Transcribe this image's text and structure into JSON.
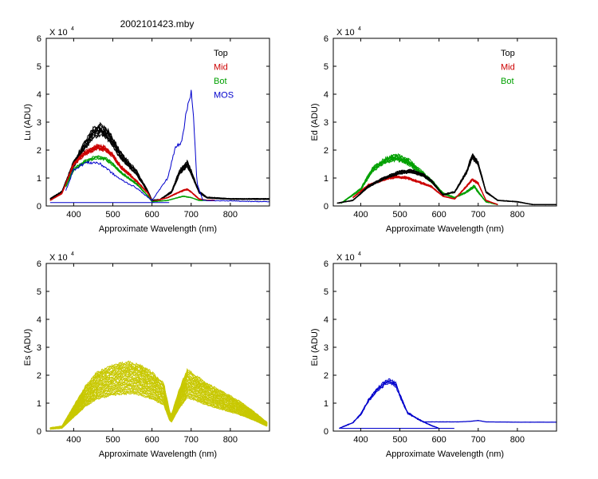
{
  "figure_title": "2002101423.mby",
  "colors": {
    "top": "#000000",
    "mid": "#cc0000",
    "bot": "#00a000",
    "mos": "#0000cc",
    "es": "#c8c800",
    "eu": "#0000cc",
    "axis": "#000000"
  },
  "chart_data": [
    {
      "id": "lu",
      "type": "line",
      "title": "",
      "xlabel": "Approximate Wavelength (nm)",
      "ylabel": "Lu (ADU)",
      "y_multiplier": "X 10",
      "y_exponent": "4",
      "xlim": [
        330,
        900
      ],
      "ylim": [
        0,
        6
      ],
      "xticks": [
        400,
        500,
        600,
        700,
        800
      ],
      "yticks": [
        0,
        1,
        2,
        3,
        4,
        5,
        6
      ],
      "legend": [
        "Top",
        "Mid",
        "Bot",
        "MOS"
      ],
      "series": [
        {
          "name": "Top",
          "color_key": "top",
          "count": 9,
          "spread": 0.12,
          "jitter": 0.06,
          "points": [
            [
              340,
              0.25
            ],
            [
              370,
              0.5
            ],
            [
              400,
              1.5
            ],
            [
              430,
              2.2
            ],
            [
              450,
              2.6
            ],
            [
              470,
              2.75
            ],
            [
              490,
              2.5
            ],
            [
              520,
              1.8
            ],
            [
              560,
              1.2
            ],
            [
              590,
              0.5
            ],
            [
              600,
              0.2
            ],
            [
              620,
              0.22
            ],
            [
              650,
              0.5
            ],
            [
              670,
              1.2
            ],
            [
              690,
              1.5
            ],
            [
              700,
              1.2
            ],
            [
              720,
              0.5
            ],
            [
              740,
              0.3
            ],
            [
              800,
              0.25
            ],
            [
              900,
              0.25
            ]
          ]
        },
        {
          "name": "Mid",
          "color_key": "mid",
          "count": 8,
          "spread": 0.06,
          "jitter": 0.05,
          "points": [
            [
              340,
              0.2
            ],
            [
              370,
              0.45
            ],
            [
              400,
              1.5
            ],
            [
              430,
              1.9
            ],
            [
              460,
              2.1
            ],
            [
              480,
              2.05
            ],
            [
              500,
              1.8
            ],
            [
              520,
              1.4
            ],
            [
              560,
              0.9
            ],
            [
              590,
              0.45
            ],
            [
              600,
              0.15
            ],
            [
              640,
              0.3
            ],
            [
              670,
              0.5
            ],
            [
              690,
              0.6
            ],
            [
              700,
              0.5
            ],
            [
              720,
              0.25
            ],
            [
              740,
              0.2
            ],
            [
              760,
              0.2
            ]
          ]
        },
        {
          "name": "Bot",
          "color_key": "bot",
          "count": 4,
          "spread": 0.05,
          "jitter": 0.04,
          "points": [
            [
              380,
              0.7
            ],
            [
              400,
              1.3
            ],
            [
              430,
              1.6
            ],
            [
              460,
              1.75
            ],
            [
              480,
              1.7
            ],
            [
              500,
              1.5
            ],
            [
              520,
              1.2
            ],
            [
              560,
              0.8
            ],
            [
              590,
              0.35
            ],
            [
              600,
              0.15
            ],
            [
              640,
              0.2
            ],
            [
              680,
              0.35
            ],
            [
              700,
              0.3
            ],
            [
              720,
              0.2
            ],
            [
              740,
              0.2
            ]
          ]
        },
        {
          "name": "MOS",
          "color_key": "mos",
          "count": 1,
          "spread": 0,
          "jitter": 0.07,
          "points": [
            [
              380,
              0.55
            ],
            [
              400,
              1.3
            ],
            [
              430,
              1.55
            ],
            [
              460,
              1.55
            ],
            [
              480,
              1.4
            ],
            [
              500,
              1.15
            ],
            [
              520,
              0.95
            ],
            [
              560,
              0.65
            ],
            [
              590,
              0.3
            ],
            [
              600,
              0.2
            ],
            [
              620,
              0.6
            ],
            [
              640,
              1.0
            ],
            [
              660,
              2.1
            ],
            [
              675,
              2.3
            ],
            [
              690,
              3.5
            ],
            [
              700,
              4.15
            ],
            [
              705,
              3.4
            ],
            [
              715,
              0.8
            ],
            [
              730,
              0.2
            ],
            [
              900,
              0.15
            ]
          ]
        },
        {
          "name": "MOS-baseline",
          "color_key": "mos",
          "count": 1,
          "spread": 0,
          "jitter": 0,
          "points": [
            [
              340,
              0.12
            ],
            [
              645,
              0.12
            ]
          ]
        }
      ]
    },
    {
      "id": "ed",
      "type": "line",
      "title": "",
      "xlabel": "Approximate Wavelength (nm)",
      "ylabel": "Ed  (ADU)",
      "y_multiplier": "X 10",
      "y_exponent": "4",
      "xlim": [
        330,
        900
      ],
      "ylim": [
        0,
        6
      ],
      "xticks": [
        400,
        500,
        600,
        700,
        800
      ],
      "yticks": [
        0,
        1,
        2,
        3,
        4,
        5,
        6
      ],
      "legend": [
        "Top",
        "Mid",
        "Bot"
      ],
      "series": [
        {
          "name": "Bot",
          "color_key": "bot",
          "count": 8,
          "spread": 0.1,
          "jitter": 0.07,
          "points": [
            [
              350,
              0.1
            ],
            [
              400,
              0.6
            ],
            [
              430,
              1.3
            ],
            [
              460,
              1.6
            ],
            [
              490,
              1.75
            ],
            [
              520,
              1.6
            ],
            [
              550,
              1.25
            ],
            [
              580,
              0.9
            ],
            [
              610,
              0.45
            ],
            [
              640,
              0.3
            ],
            [
              670,
              0.5
            ],
            [
              690,
              0.7
            ],
            [
              700,
              0.5
            ],
            [
              720,
              0.15
            ],
            [
              750,
              0.05
            ]
          ]
        },
        {
          "name": "Mid",
          "color_key": "mid",
          "count": 6,
          "spread": 0.06,
          "jitter": 0.05,
          "points": [
            [
              380,
              0.3
            ],
            [
              420,
              0.75
            ],
            [
              460,
              0.95
            ],
            [
              490,
              1.05
            ],
            [
              520,
              1.0
            ],
            [
              550,
              0.85
            ],
            [
              580,
              0.7
            ],
            [
              610,
              0.35
            ],
            [
              640,
              0.25
            ],
            [
              670,
              0.7
            ],
            [
              685,
              0.95
            ],
            [
              700,
              0.8
            ],
            [
              720,
              0.2
            ],
            [
              750,
              0.05
            ]
          ]
        },
        {
          "name": "Top",
          "color_key": "top",
          "count": 9,
          "spread": 0.08,
          "jitter": 0.05,
          "points": [
            [
              340,
              0.1
            ],
            [
              380,
              0.2
            ],
            [
              420,
              0.7
            ],
            [
              460,
              1.0
            ],
            [
              500,
              1.2
            ],
            [
              530,
              1.25
            ],
            [
              560,
              1.1
            ],
            [
              580,
              0.9
            ],
            [
              610,
              0.4
            ],
            [
              640,
              0.5
            ],
            [
              670,
              1.2
            ],
            [
              685,
              1.8
            ],
            [
              700,
              1.5
            ],
            [
              720,
              0.5
            ],
            [
              750,
              0.2
            ],
            [
              800,
              0.15
            ],
            [
              840,
              0.05
            ],
            [
              900,
              0.05
            ]
          ]
        }
      ]
    },
    {
      "id": "es",
      "type": "line",
      "title": "",
      "xlabel": "Approximate Wavelength (nm)",
      "ylabel": "Es  (ADU)",
      "y_multiplier": "X 10",
      "y_exponent": "4",
      "xlim": [
        330,
        900
      ],
      "ylim": [
        0,
        6
      ],
      "xticks": [
        400,
        500,
        600,
        700,
        800
      ],
      "yticks": [
        0,
        1,
        2,
        3,
        4,
        5,
        6
      ],
      "legend": [],
      "series": [
        {
          "name": "Es",
          "color_key": "es",
          "count": 28,
          "spread": "multiplicative",
          "scale_range": [
            0.55,
            1.0
          ],
          "jitter": 0.05,
          "points": [
            [
              340,
              0.12
            ],
            [
              370,
              0.18
            ],
            [
              400,
              0.9
            ],
            [
              430,
              1.6
            ],
            [
              460,
              2.1
            ],
            [
              500,
              2.35
            ],
            [
              540,
              2.45
            ],
            [
              570,
              2.35
            ],
            [
              600,
              2.1
            ],
            [
              630,
              1.7
            ],
            [
              645,
              0.7
            ],
            [
              650,
              0.6
            ],
            [
              670,
              1.5
            ],
            [
              690,
              2.2
            ],
            [
              710,
              2.0
            ],
            [
              740,
              1.7
            ],
            [
              780,
              1.4
            ],
            [
              820,
              1.1
            ],
            [
              860,
              0.7
            ],
            [
              895,
              0.3
            ]
          ]
        }
      ]
    },
    {
      "id": "eu",
      "type": "line",
      "title": "",
      "xlabel": "Approximate Wavelength (nm)",
      "ylabel": "Eu  (ADU)",
      "y_multiplier": "X 10",
      "y_exponent": "4",
      "xlim": [
        330,
        900
      ],
      "ylim": [
        0,
        6
      ],
      "xticks": [
        400,
        500,
        600,
        700,
        800
      ],
      "yticks": [
        0,
        1,
        2,
        3,
        4,
        5,
        6
      ],
      "legend": [],
      "series": [
        {
          "name": "Eu",
          "color_key": "eu",
          "count": 4,
          "spread": 0.06,
          "jitter": 0.06,
          "points": [
            [
              345,
              0.1
            ],
            [
              380,
              0.3
            ],
            [
              400,
              0.6
            ],
            [
              420,
              1.1
            ],
            [
              440,
              1.45
            ],
            [
              460,
              1.7
            ],
            [
              475,
              1.8
            ],
            [
              490,
              1.65
            ],
            [
              505,
              1.1
            ],
            [
              520,
              0.65
            ],
            [
              550,
              0.4
            ],
            [
              580,
              0.2
            ],
            [
              600,
              0.1
            ]
          ]
        },
        {
          "name": "Eu-baseline",
          "color_key": "eu",
          "count": 1,
          "spread": 0,
          "jitter": 0,
          "points": [
            [
              345,
              0.1
            ],
            [
              640,
              0.1
            ]
          ]
        },
        {
          "name": "Eu-red",
          "color_key": "eu",
          "count": 2,
          "spread": 0.02,
          "jitter": 0.01,
          "points": [
            [
              560,
              0.33
            ],
            [
              650,
              0.33
            ],
            [
              680,
              0.35
            ],
            [
              700,
              0.38
            ],
            [
              720,
              0.33
            ],
            [
              800,
              0.32
            ],
            [
              900,
              0.32
            ]
          ]
        }
      ]
    }
  ]
}
